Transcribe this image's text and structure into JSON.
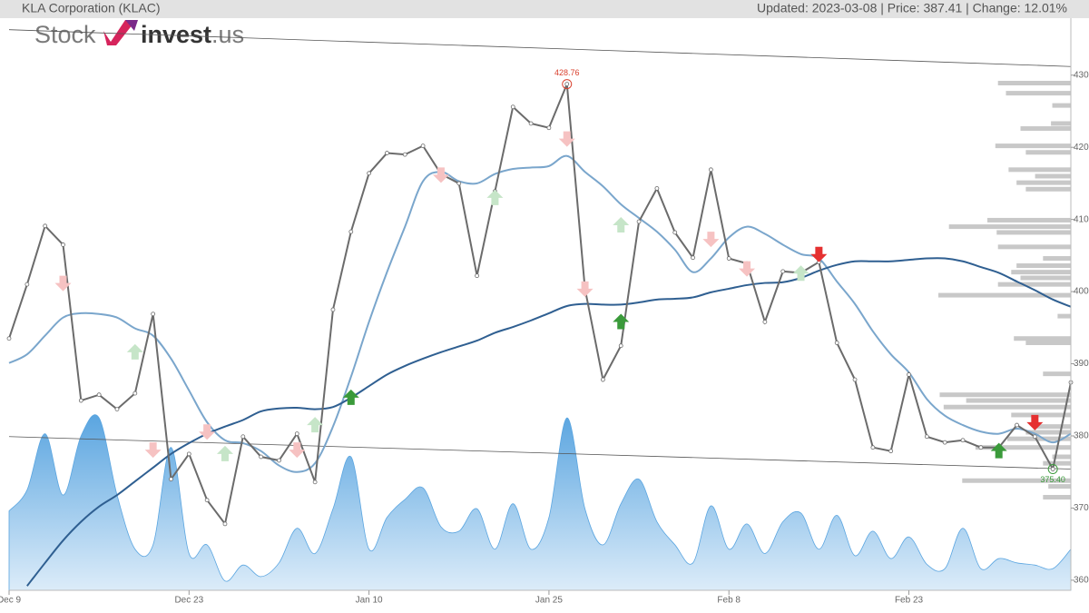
{
  "header": {
    "title": "KLA Corporation (KLAC)",
    "status": "Updated: 2023-03-08 | Price: 387.41 | Change: 12.01%"
  },
  "logo": {
    "left": "Stock",
    "right": "invest",
    "suffix": ".us"
  },
  "chart_data": {
    "type": "line",
    "categories": [
      "Dec 9",
      null,
      null,
      null,
      null,
      null,
      null,
      null,
      null,
      null,
      "Dec 23",
      null,
      null,
      null,
      null,
      null,
      null,
      null,
      null,
      null,
      "Jan 10",
      null,
      null,
      null,
      null,
      null,
      null,
      null,
      null,
      null,
      "Jan 25",
      null,
      null,
      null,
      null,
      null,
      null,
      null,
      null,
      null,
      "Feb 8",
      null,
      null,
      null,
      null,
      null,
      null,
      null,
      null,
      null,
      "Feb 23",
      null,
      null,
      null,
      null,
      null,
      null,
      null,
      null,
      null
    ],
    "ylim": [
      358.6,
      437.9
    ],
    "yticks": [
      360,
      370,
      380,
      390,
      400,
      410,
      420,
      430
    ],
    "series": [
      {
        "style": "area",
        "color": "#5aa5e0",
        "smooth": true,
        "values": [
          369.6,
          372.5,
          380.3,
          371.8,
          380.0,
          382.5,
          371.8,
          364.3,
          364.9,
          378.4,
          363.7,
          364.9,
          359.9,
          362.1,
          360.5,
          362.4,
          367.2,
          363.7,
          369.9,
          377.1,
          364.3,
          368.7,
          371.2,
          372.8,
          367.4,
          366.8,
          369.9,
          364.3,
          370.6,
          364.3,
          368.7,
          382.5,
          369.9,
          364.9,
          370.6,
          374.0,
          368.1,
          364.9,
          362.4,
          370.3,
          364.3,
          367.8,
          363.7,
          368.1,
          369.3,
          364.3,
          369.0,
          363.4,
          366.8,
          363.0,
          366.0,
          362.2,
          361.6,
          367.2,
          361.6,
          363.0,
          362.4,
          362.1,
          361.6,
          364.3
        ]
      },
      {
        "style": "line",
        "color": "#7aa6cc",
        "smooth": true,
        "values": [
          390.1,
          391.3,
          393.9,
          396.4,
          397.0,
          396.9,
          396.4,
          394.9,
          393.9,
          390.7,
          386.3,
          381.9,
          379.4,
          379.0,
          377.9,
          375.9,
          375.0,
          376.2,
          381.3,
          388.2,
          395.8,
          402.7,
          409.0,
          415.3,
          416.6,
          415.3,
          415.0,
          416.3,
          417.0,
          417.2,
          417.4,
          418.8,
          416.6,
          414.6,
          412.1,
          410.2,
          408.3,
          405.8,
          402.7,
          404.6,
          407.5,
          409.0,
          408.0,
          406.5,
          405.2,
          404.6,
          401.4,
          398.3,
          394.5,
          391.3,
          388.8,
          385.1,
          382.8,
          381.5,
          380.6,
          380.3,
          381.0,
          380.3,
          379.1,
          380.3
        ]
      },
      {
        "style": "line",
        "color": "#2f5f91",
        "smooth": true,
        "values": [
          null,
          359.2,
          362.4,
          365.5,
          368.1,
          370.2,
          371.8,
          373.7,
          375.6,
          377.5,
          379.0,
          380.3,
          381.3,
          382.2,
          383.4,
          383.8,
          383.9,
          383.7,
          384.0,
          385.3,
          386.9,
          388.5,
          389.7,
          390.7,
          391.6,
          392.4,
          393.2,
          394.3,
          395.1,
          396.0,
          397.0,
          398.0,
          398.3,
          398.2,
          398.2,
          398.5,
          398.9,
          399.0,
          399.2,
          399.9,
          400.4,
          400.9,
          401.2,
          401.3,
          401.9,
          402.9,
          403.7,
          404.2,
          404.2,
          404.2,
          404.4,
          404.6,
          404.6,
          404.2,
          403.4,
          402.6,
          401.4,
          400.2,
          398.9,
          397.9
        ]
      },
      {
        "style": "line",
        "color": "#6b6b6b",
        "smooth": false,
        "markers": true,
        "values": [
          393.5,
          401.0,
          409.1,
          406.5,
          384.9,
          385.7,
          383.7,
          385.9,
          396.9,
          374.0,
          377.5,
          371.1,
          367.8,
          379.9,
          377.1,
          376.6,
          380.3,
          373.6,
          397.5,
          408.3,
          416.4,
          419.2,
          419.0,
          420.2,
          416.3,
          415.0,
          402.2,
          413.9,
          425.6,
          423.3,
          422.7,
          428.76,
          400.4,
          387.8,
          392.5,
          409.7,
          414.3,
          408.2,
          404.7,
          416.9,
          404.6,
          403.9,
          395.8,
          402.8,
          402.6,
          404.1,
          392.9,
          387.8,
          378.4,
          377.9,
          388.5,
          379.9,
          379.1,
          379.4,
          378.4,
          378.4,
          381.5,
          379.9,
          375.4,
          387.41
        ]
      }
    ],
    "trend_lines": [
      {
        "color": "#555555",
        "values": [
          436.3,
          431.2
        ]
      },
      {
        "color": "#555555",
        "values": [
          379.9,
          375.4
        ]
      }
    ],
    "signals": [
      {
        "direction": "down",
        "color": "#f6c2c2",
        "x": [
          3,
          8,
          11,
          16,
          24,
          31,
          32,
          39,
          41
        ],
        "values": [
          401.2,
          378.1,
          380.6,
          378.1,
          416.2,
          421.2,
          400.4,
          407.3,
          403.2
        ]
      },
      {
        "direction": "up",
        "color": "#c6e5c8",
        "x": [
          7,
          12,
          17,
          27,
          34,
          44
        ],
        "values": [
          391.6,
          377.5,
          381.5,
          413.0,
          409.2,
          402.5
        ]
      },
      {
        "direction": "up",
        "color": "#3a9a3a",
        "x": [
          19,
          34,
          55
        ],
        "values": [
          385.3,
          395.8,
          377.9
        ]
      },
      {
        "direction": "down",
        "color": "#e53030",
        "x": [
          45,
          57
        ],
        "values": [
          405.2,
          381.9
        ]
      }
    ],
    "annotations": [
      {
        "x": 31,
        "text": "428.76",
        "color": "#d9412e"
      },
      {
        "x": 58,
        "text": "375.40",
        "color": "#3a9a3a"
      }
    ],
    "volume_profile": {
      "color": "#c8c8c8",
      "levels": [
        428.9,
        427.5,
        425.8,
        423.3,
        422.6,
        420.2,
        419.3,
        416.9,
        416.0,
        415.1,
        414.2,
        409.9,
        409.0,
        408.2,
        406.2,
        404.6,
        403.6,
        402.7,
        401.9,
        401.0,
        399.5,
        396.6,
        393.5,
        392.9,
        388.6,
        385.7,
        384.9,
        384.0,
        382.9,
        381.3,
        380.5,
        379.6,
        378.4,
        377.1,
        376.2,
        373.8,
        373.0,
        371.5
      ],
      "values": [
        55,
        49,
        14,
        15,
        38,
        57,
        34,
        47,
        27,
        41,
        34,
        63,
        92,
        56,
        55,
        21,
        41,
        45,
        38,
        55,
        100,
        10,
        43,
        34,
        21,
        99,
        79,
        96,
        45,
        27,
        34,
        48,
        72,
        14,
        21,
        82,
        17,
        21
      ]
    }
  }
}
